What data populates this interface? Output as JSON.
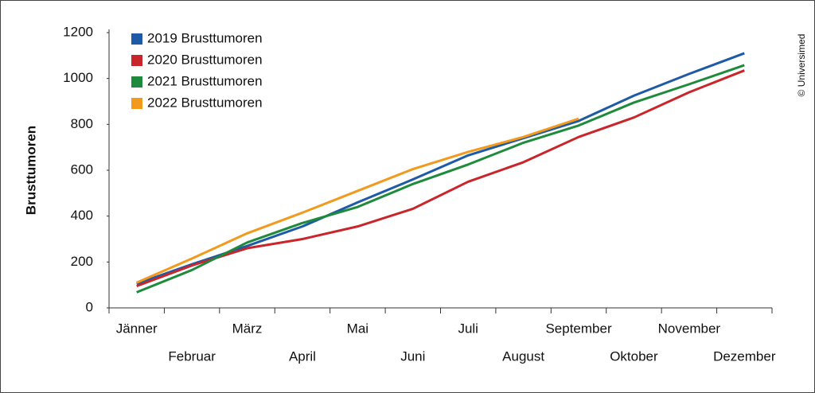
{
  "chart_data": {
    "type": "line",
    "y_label": "Brusttumoren",
    "credit": "© Universimed",
    "categories": [
      "Jänner",
      "Februar",
      "März",
      "April",
      "Mai",
      "Juni",
      "Juli",
      "August",
      "September",
      "Oktober",
      "November",
      "Dezember"
    ],
    "series": [
      {
        "name": "2019 Brusttumoren",
        "color": "#1f5aa6",
        "values": [
          105,
          190,
          270,
          355,
          460,
          560,
          665,
          740,
          815,
          925,
          1020,
          1110
        ]
      },
      {
        "name": "2020 Brusttumoren",
        "color": "#c8262b",
        "values": [
          95,
          185,
          260,
          300,
          355,
          432,
          550,
          635,
          745,
          830,
          940,
          1035
        ]
      },
      {
        "name": "2021 Brusttumoren",
        "color": "#1e8a3c",
        "values": [
          68,
          165,
          285,
          370,
          440,
          540,
          625,
          720,
          795,
          895,
          975,
          1058
        ]
      },
      {
        "name": "2022 Brusttumoren",
        "color": "#f29a1d",
        "values": [
          110,
          215,
          325,
          415,
          510,
          605,
          680,
          745,
          825,
          null,
          null,
          null
        ]
      }
    ],
    "ylim": [
      0,
      1200
    ],
    "yticks": [
      0,
      200,
      400,
      600,
      800,
      1000,
      1200
    ],
    "legend": "upper left"
  }
}
